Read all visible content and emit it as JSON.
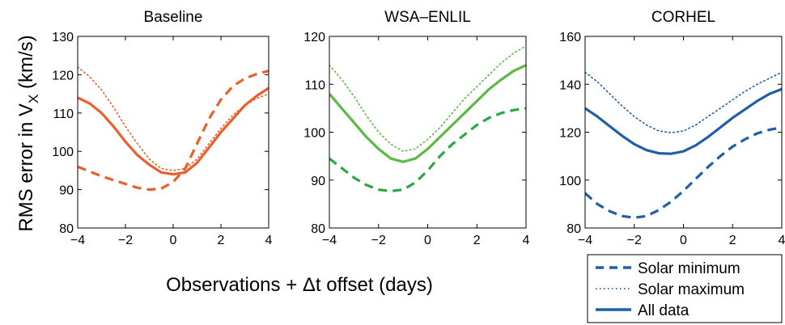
{
  "figure": {
    "ylabel_main": "RMS error in V",
    "ylabel_sub": "X",
    "ylabel_unit": " (km/s)",
    "xlabel": "Observations + Δt offset (days)"
  },
  "legend": {
    "placement": "bottom-right",
    "color": "#1f5fa8",
    "entries": [
      {
        "label": "Solar minimum",
        "style": "dashed"
      },
      {
        "label": "Solar maximum",
        "style": "dotted"
      },
      {
        "label": "All data",
        "style": "solid"
      }
    ]
  },
  "chart_data": [
    {
      "type": "line",
      "title": "Baseline",
      "color": "#e8602c",
      "xlim": [
        -4,
        4
      ],
      "ylim": [
        80,
        130
      ],
      "xticks": [
        -4,
        -2,
        0,
        2,
        4
      ],
      "yticks": [
        80,
        90,
        100,
        110,
        120,
        130
      ],
      "grid": false,
      "series": [
        {
          "name": "Solar minimum",
          "style": "dashed",
          "x": [
            -4,
            -3,
            -2,
            -1.5,
            -1,
            -0.5,
            0,
            0.5,
            1,
            1.5,
            2,
            2.5,
            3,
            3.5,
            4
          ],
          "y": [
            96,
            93.5,
            91.5,
            90.5,
            90,
            90.3,
            92,
            95.5,
            102,
            108.5,
            113.5,
            117,
            119,
            120.2,
            121
          ]
        },
        {
          "name": "Solar maximum",
          "style": "dotted",
          "x": [
            -4,
            -3.5,
            -3,
            -2.5,
            -2,
            -1.5,
            -1,
            -0.5,
            0,
            0.5,
            1,
            1.5,
            2,
            2.5,
            3,
            3.5,
            4
          ],
          "y": [
            122,
            119.5,
            116,
            111.5,
            106.5,
            102,
            98,
            95.5,
            95,
            95.5,
            98,
            102,
            106,
            109.5,
            112,
            113.8,
            115
          ]
        },
        {
          "name": "All data",
          "style": "solid",
          "x": [
            -4,
            -3.5,
            -3,
            -2.5,
            -2,
            -1.5,
            -1,
            -0.5,
            0,
            0.5,
            1,
            1.5,
            2,
            2.5,
            3,
            3.5,
            4
          ],
          "y": [
            114,
            112.5,
            110,
            106.5,
            102.5,
            99,
            96.5,
            94.5,
            94,
            94.5,
            97,
            101,
            105,
            108.5,
            112,
            114.5,
            116.5
          ]
        }
      ]
    },
    {
      "type": "line",
      "title": "WSA–ENLIL",
      "color": "#5cb847",
      "color_min": "#2aa845",
      "xlim": [
        -4,
        4
      ],
      "ylim": [
        80,
        120
      ],
      "xticks": [
        -4,
        -2,
        0,
        2,
        4
      ],
      "yticks": [
        80,
        90,
        100,
        110,
        120
      ],
      "grid": false,
      "series": [
        {
          "name": "Solar minimum",
          "style": "dashed",
          "x": [
            -4,
            -3.5,
            -3,
            -2.5,
            -2,
            -1.5,
            -1,
            -0.5,
            0,
            0.5,
            1,
            1.5,
            2,
            2.5,
            3,
            3.5,
            4
          ],
          "y": [
            94.5,
            92.5,
            90.5,
            89,
            88,
            87.7,
            88,
            89.5,
            92,
            95,
            97.5,
            99.5,
            101.5,
            103,
            104,
            104.6,
            105
          ]
        },
        {
          "name": "Solar maximum",
          "style": "dotted",
          "x": [
            -4,
            -3.5,
            -3,
            -2.5,
            -2,
            -1.5,
            -1,
            -0.5,
            0,
            0.5,
            1,
            1.5,
            2,
            2.5,
            3,
            3.5,
            4
          ],
          "y": [
            114,
            111,
            107.5,
            103.5,
            100,
            97.5,
            96,
            96.5,
            98.5,
            101,
            104,
            107,
            109.5,
            112,
            114.5,
            116.5,
            118
          ]
        },
        {
          "name": "All data",
          "style": "solid",
          "x": [
            -4,
            -3.5,
            -3,
            -2.5,
            -2,
            -1.5,
            -1,
            -0.5,
            0,
            0.5,
            1,
            1.5,
            2,
            2.5,
            3,
            3.5,
            4
          ],
          "y": [
            108,
            105,
            102,
            99,
            96.5,
            94.5,
            93.8,
            94.5,
            96.5,
            99,
            101.5,
            104,
            106.5,
            109,
            111,
            112.8,
            114
          ]
        }
      ]
    },
    {
      "type": "line",
      "title": "CORHEL",
      "color": "#1f5fa8",
      "xlim": [
        -4,
        4
      ],
      "ylim": [
        80,
        160
      ],
      "xticks": [
        -4,
        -2,
        0,
        2,
        4
      ],
      "yticks": [
        80,
        100,
        120,
        140,
        160
      ],
      "grid": false,
      "series": [
        {
          "name": "Solar minimum",
          "style": "dashed",
          "x": [
            -4,
            -3.5,
            -3,
            -2.5,
            -2,
            -1.5,
            -1,
            -0.5,
            0,
            0.5,
            1,
            1.5,
            2,
            2.5,
            3,
            3.5,
            4
          ],
          "y": [
            94.5,
            90,
            87,
            85,
            84.3,
            85,
            87.5,
            91,
            95.5,
            100.5,
            105.5,
            110,
            114,
            117,
            119.5,
            121,
            122
          ]
        },
        {
          "name": "Solar maximum",
          "style": "dotted",
          "x": [
            -4,
            -3.5,
            -3,
            -2.5,
            -2,
            -1.5,
            -1,
            -0.5,
            0,
            0.5,
            1,
            1.5,
            2,
            2.5,
            3,
            3.5,
            4
          ],
          "y": [
            145,
            141,
            136,
            131,
            126.5,
            123,
            120.5,
            119.8,
            120.5,
            123,
            126.5,
            130,
            133.5,
            137,
            140,
            142.5,
            145
          ]
        },
        {
          "name": "All data",
          "style": "solid",
          "x": [
            -4,
            -3.5,
            -3,
            -2.5,
            -2,
            -1.5,
            -1,
            -0.5,
            0,
            0.5,
            1,
            1.5,
            2,
            2.5,
            3,
            3.5,
            4
          ],
          "y": [
            130,
            126.5,
            122.5,
            118.5,
            115,
            112.5,
            111.2,
            111,
            112,
            114.5,
            118,
            122,
            126,
            129.5,
            133,
            136,
            138
          ]
        }
      ]
    }
  ]
}
